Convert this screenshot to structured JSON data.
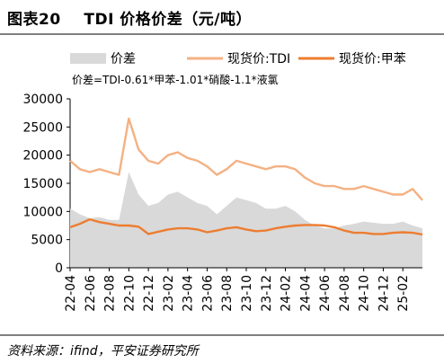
{
  "header": {
    "figure_no": "图表20",
    "title": "TDI 价格价差（元/吨）"
  },
  "footer": {
    "source": "资料来源：ifind，平安证券研究所"
  },
  "chart_data": {
    "type": "line",
    "formula": "价差=TDI-0.61*甲苯-1.01*硝酸-1.1*液氯",
    "ylim": [
      0,
      30000
    ],
    "yticks": [
      "0",
      "5000",
      "10000",
      "15000",
      "20000",
      "25000",
      "30000"
    ],
    "xlabels": [
      "22-04",
      "22-06",
      "22-08",
      "22-10",
      "22-12",
      "23-02",
      "23-04",
      "23-06",
      "23-08",
      "23-10",
      "23-12",
      "24-02",
      "24-04",
      "24-06",
      "24-08",
      "24-10",
      "24-12",
      "25-02"
    ],
    "x": [
      "22-04",
      "22-05",
      "22-06",
      "22-07",
      "22-08",
      "22-09",
      "22-10",
      "22-11",
      "22-12",
      "23-01",
      "23-02",
      "23-03",
      "23-04",
      "23-05",
      "23-06",
      "23-07",
      "23-08",
      "23-09",
      "23-10",
      "23-11",
      "23-12",
      "24-01",
      "24-02",
      "24-03",
      "24-04",
      "24-05",
      "24-06",
      "24-07",
      "24-08",
      "24-09",
      "24-10",
      "24-11",
      "24-12",
      "25-01",
      "25-02",
      "25-03",
      "25-04"
    ],
    "series": [
      {
        "name": "价差",
        "kind": "area",
        "color": "#d9d9d9",
        "values": [
          10500,
          9500,
          8800,
          9000,
          8500,
          8500,
          17000,
          13000,
          11000,
          11500,
          13000,
          13500,
          12500,
          11500,
          11000,
          9500,
          11000,
          12500,
          12000,
          11500,
          10500,
          10500,
          11000,
          10000,
          8500,
          7500,
          7000,
          7000,
          7500,
          7800,
          8200,
          8000,
          7800,
          7800,
          8200,
          7500,
          7000
        ]
      },
      {
        "name": "现货价:TDI",
        "kind": "line",
        "color": "#f4b183",
        "values": [
          19000,
          17500,
          17000,
          17500,
          17000,
          16500,
          26500,
          21000,
          19000,
          18500,
          20000,
          20500,
          19500,
          19000,
          18000,
          16500,
          17500,
          19000,
          18500,
          18000,
          17500,
          18000,
          18000,
          17500,
          16000,
          15000,
          14500,
          14500,
          14000,
          14000,
          14500,
          14000,
          13500,
          13000,
          13000,
          14000,
          12000
        ]
      },
      {
        "name": "现货价:甲苯",
        "kind": "line",
        "color": "#ed7d31",
        "values": [
          7200,
          7800,
          8600,
          8100,
          7800,
          7500,
          7500,
          7300,
          6000,
          6400,
          6800,
          7000,
          7000,
          6800,
          6300,
          6600,
          7000,
          7200,
          6800,
          6500,
          6600,
          7000,
          7300,
          7500,
          7600,
          7600,
          7500,
          7200,
          6600,
          6200,
          6200,
          6000,
          6000,
          6200,
          6300,
          6200,
          5900
        ]
      }
    ]
  }
}
